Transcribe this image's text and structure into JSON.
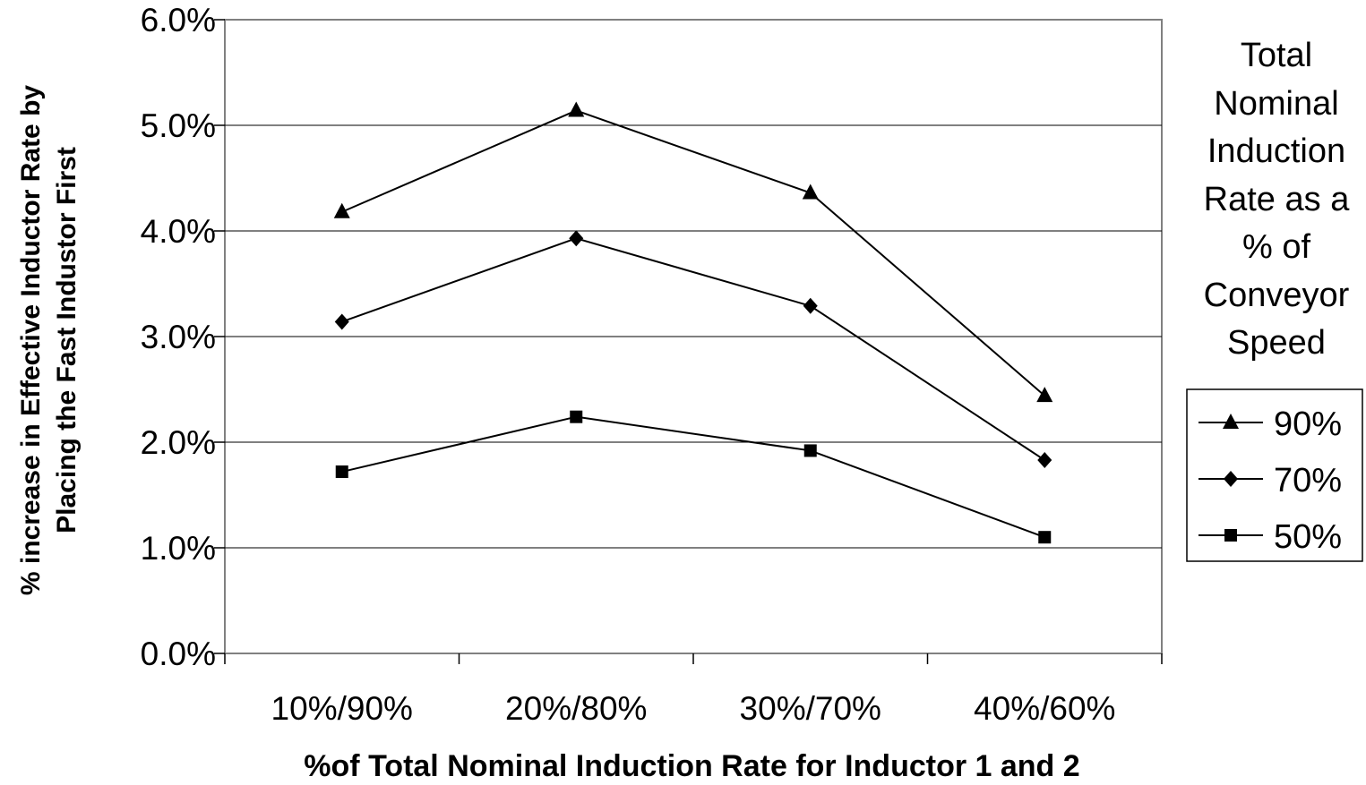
{
  "chart_data": {
    "type": "line",
    "categories": [
      "10%/90%",
      "20%/80%",
      "30%/70%",
      "40%/60%"
    ],
    "series": [
      {
        "name": "90%",
        "marker": "triangle",
        "values": [
          4.18,
          5.14,
          4.36,
          2.44
        ]
      },
      {
        "name": "70%",
        "marker": "diamond",
        "values": [
          3.14,
          3.93,
          3.29,
          1.83
        ]
      },
      {
        "name": "50%",
        "marker": "square",
        "values": [
          1.72,
          2.24,
          1.92,
          1.1
        ]
      }
    ],
    "xlabel": "%of Total Nominal Induction Rate for Inductor 1 and 2",
    "ylabel": "% increase in Effective Inductor Rate by\nPlacing the Fast Industor First",
    "ylim": [
      0,
      6
    ],
    "yticks": [
      "0.0%",
      "1.0%",
      "2.0%",
      "3.0%",
      "4.0%",
      "5.0%",
      "6.0%"
    ],
    "legend_title": "Total\nNominal\nInduction\nRate as a\n% of\nConveyor\nSpeed",
    "legend_position": "right",
    "grid": "horizontal",
    "line_color": "#000000"
  }
}
